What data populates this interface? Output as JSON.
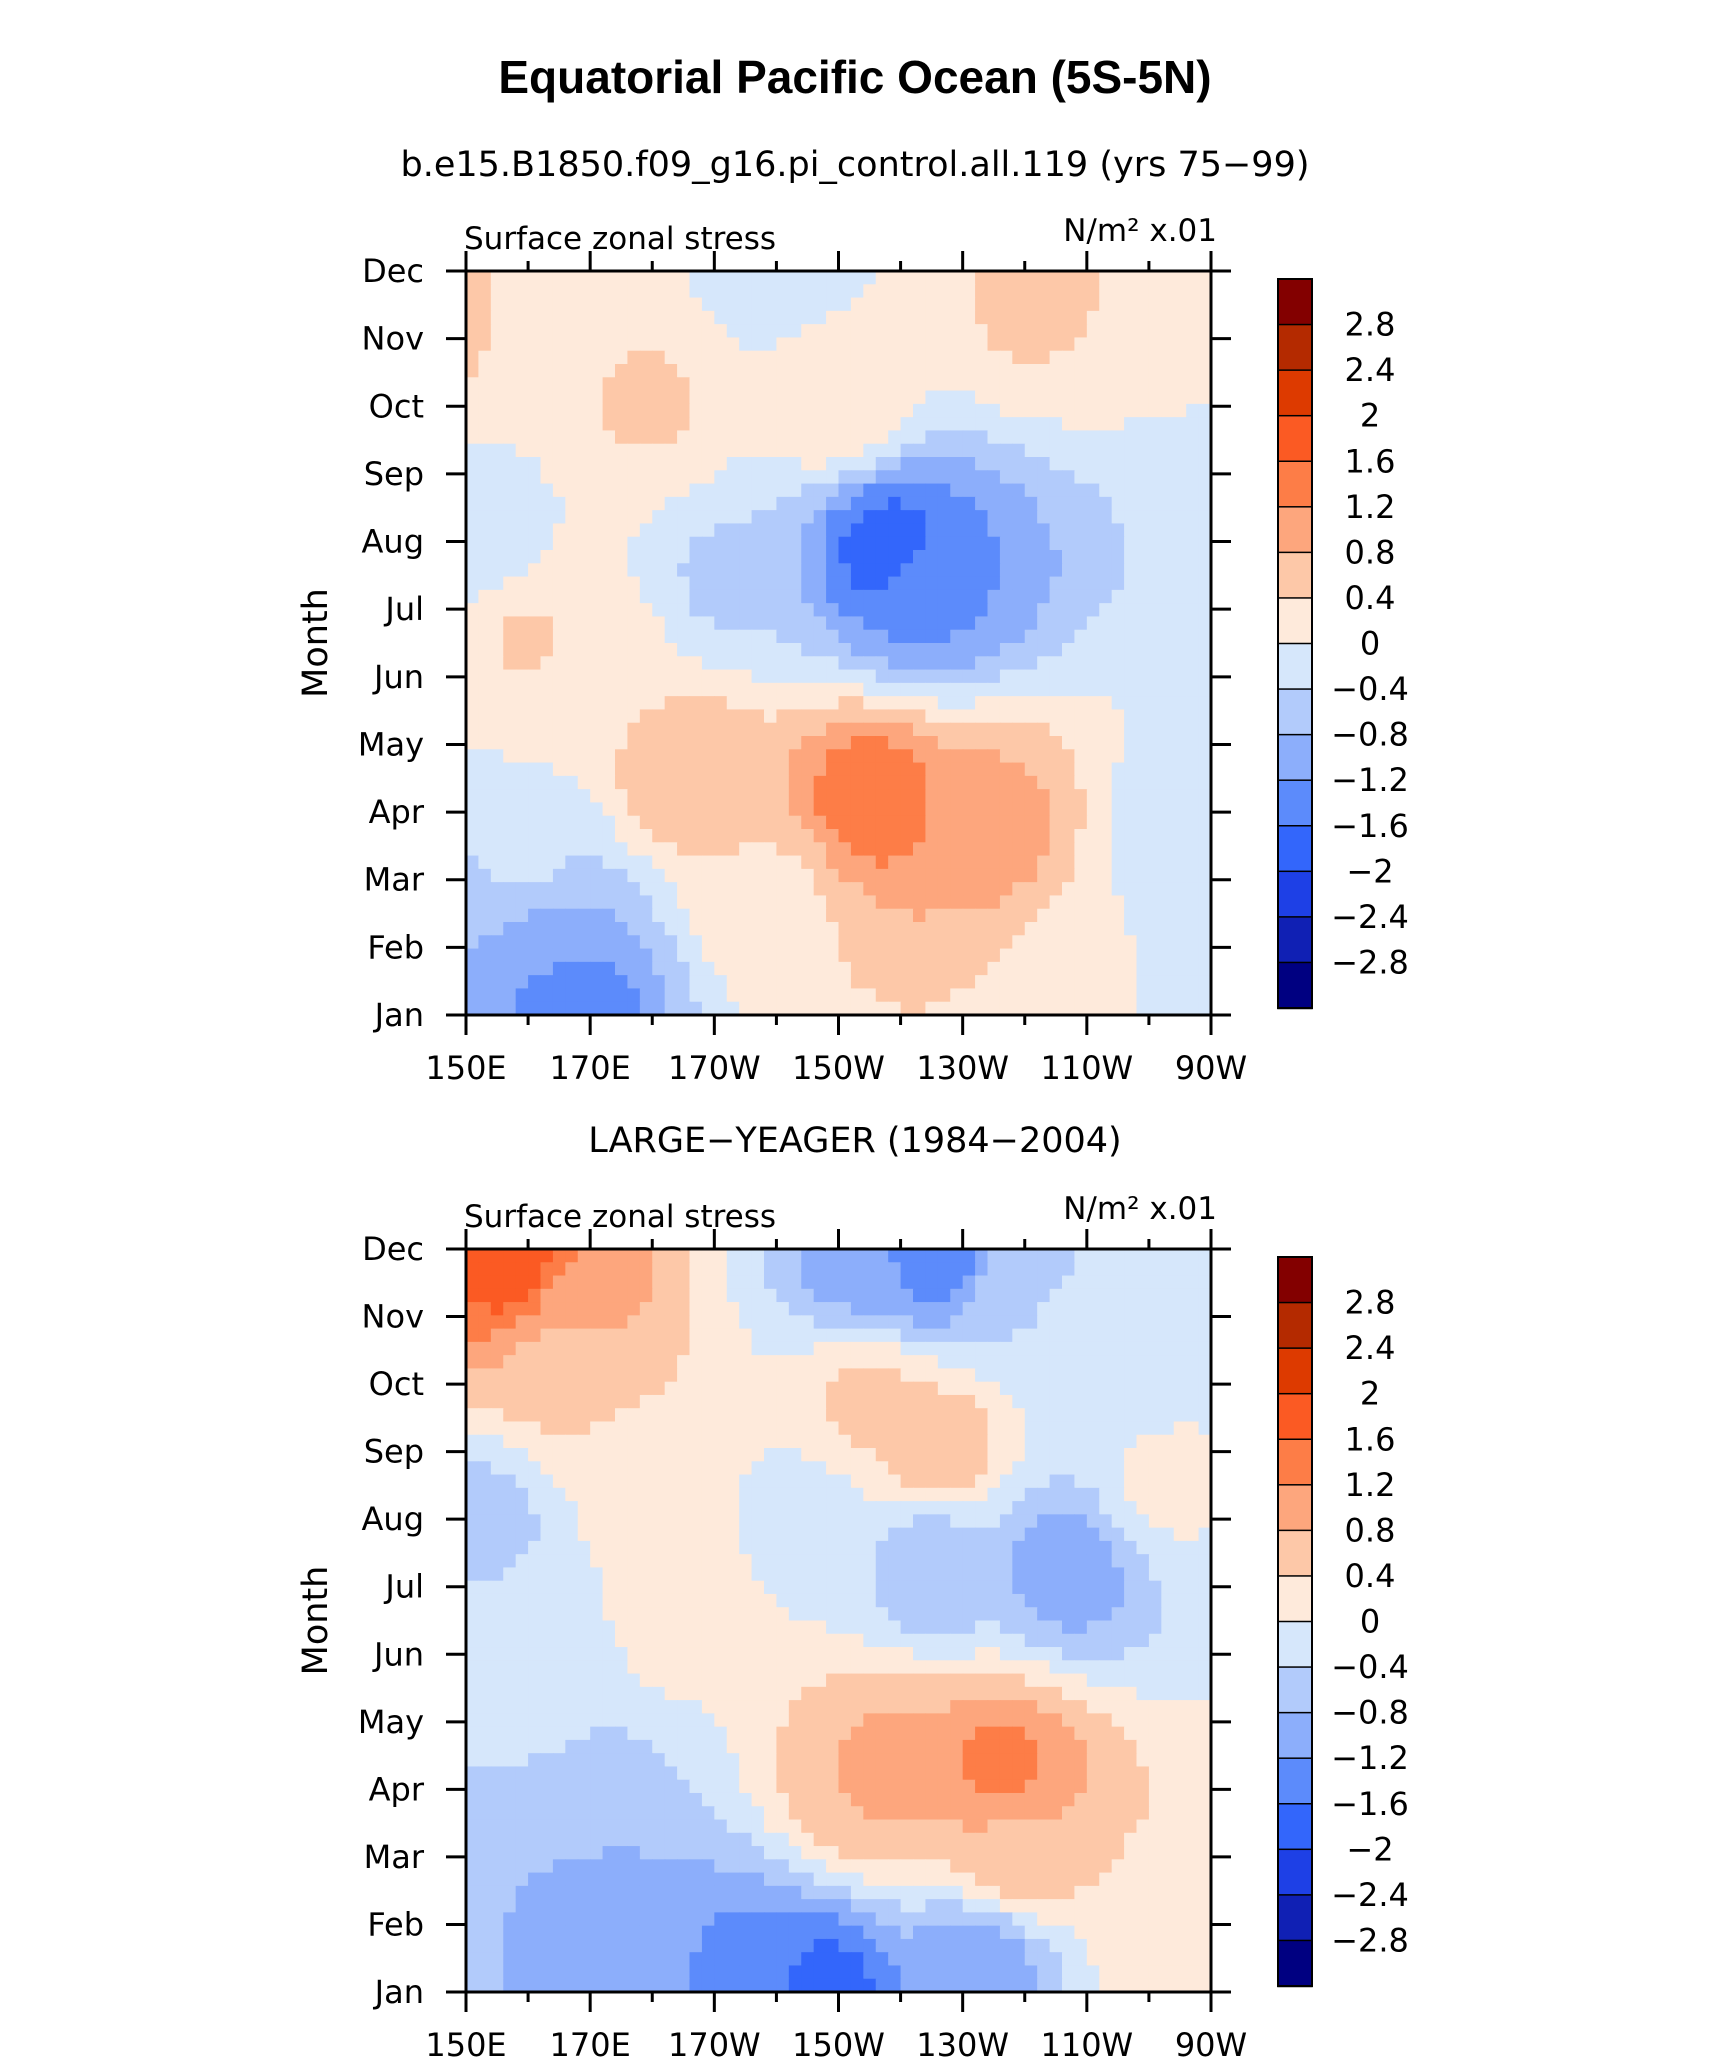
{
  "figure": {
    "title": "Equatorial Pacific Ocean (5S-5N)"
  },
  "chart_data": [
    {
      "type": "heatmap",
      "title": "b.e15.B1850.f09_g16.pi_control.all.119 (yrs 75−99)",
      "left_label": "Surface zonal stress",
      "units_label": "N/m² x.01",
      "xlabel": "",
      "ylabel": "Month",
      "x_ticks": [
        "150E",
        "170E",
        "170W",
        "150W",
        "130W",
        "110W",
        "90W"
      ],
      "y_ticks": [
        "Jan",
        "Feb",
        "Mar",
        "Apr",
        "May",
        "Jun",
        "Jul",
        "Aug",
        "Sep",
        "Oct",
        "Nov",
        "Dec"
      ],
      "xlim": [
        150,
        270
      ],
      "ylim": [
        1,
        12
      ],
      "features": [
        {
          "x": 140,
          "y": 11.0,
          "value": 0.5
        },
        {
          "x": 240,
          "y": 11.5,
          "value": 0.45
        },
        {
          "x": 200,
          "y": 12.0,
          "value": -0.2
        },
        {
          "x": 180,
          "y": 10.0,
          "value": 0.45
        },
        {
          "x": 210,
          "y": 10.0,
          "value": 0.4
        },
        {
          "x": 218,
          "y": 7.9,
          "value": -1.9
        },
        {
          "x": 225,
          "y": 7.3,
          "value": -1.3
        },
        {
          "x": 192,
          "y": 7.4,
          "value": -0.5
        },
        {
          "x": 160,
          "y": 6.6,
          "value": 0.45
        },
        {
          "x": 172,
          "y": 6.0,
          "value": 0.3
        },
        {
          "x": 215,
          "y": 4.2,
          "value": 1.55
        },
        {
          "x": 235,
          "y": 3.8,
          "value": 1.0
        },
        {
          "x": 186,
          "y": 4.6,
          "value": 0.8
        },
        {
          "x": 200,
          "y": 2.7,
          "value": 0.3
        },
        {
          "x": 163,
          "y": 2.2,
          "value": -0.95
        },
        {
          "x": 167,
          "y": 1.3,
          "value": -1.5
        },
        {
          "x": 160,
          "y": 3.2,
          "value": -0.3
        },
        {
          "x": 265,
          "y": 3.8,
          "value": -0.2
        },
        {
          "x": 254,
          "y": 1.5,
          "value": 0.05
        },
        {
          "x": 268,
          "y": 1.5,
          "value": -0.3
        },
        {
          "x": 153,
          "y": 8.0,
          "value": -0.25
        }
      ]
    },
    {
      "type": "heatmap",
      "title": "LARGE−YEAGER (1984−2004)",
      "left_label": "Surface zonal stress",
      "units_label": "N/m² x.01",
      "xlabel": "",
      "ylabel": "Month",
      "x_ticks": [
        "150E",
        "170E",
        "170W",
        "150W",
        "130W",
        "110W",
        "90W"
      ],
      "y_ticks": [
        "Jan",
        "Feb",
        "Mar",
        "Apr",
        "May",
        "Jun",
        "Jul",
        "Aug",
        "Sep",
        "Oct",
        "Nov",
        "Dec"
      ],
      "xlim": [
        150,
        270
      ],
      "ylim": [
        1,
        12
      ],
      "features": [
        {
          "x": 158,
          "y": 11.7,
          "value": 2.0
        },
        {
          "x": 166,
          "y": 11.2,
          "value": 1.0
        },
        {
          "x": 165,
          "y": 10.3,
          "value": 0.5
        },
        {
          "x": 215,
          "y": 11.8,
          "value": -1.1
        },
        {
          "x": 225,
          "y": 11.9,
          "value": -1.6
        },
        {
          "x": 240,
          "y": 11.3,
          "value": -0.4
        },
        {
          "x": 215,
          "y": 9.8,
          "value": 0.55
        },
        {
          "x": 226,
          "y": 9.1,
          "value": 0.75
        },
        {
          "x": 180,
          "y": 8.5,
          "value": 0.25
        },
        {
          "x": 152,
          "y": 7.9,
          "value": -0.7
        },
        {
          "x": 158,
          "y": 6.5,
          "value": -0.2
        },
        {
          "x": 225,
          "y": 7.3,
          "value": -0.8
        },
        {
          "x": 247,
          "y": 7.3,
          "value": -1.1
        },
        {
          "x": 205,
          "y": 8.0,
          "value": -0.2
        },
        {
          "x": 218,
          "y": 4.3,
          "value": 1.0
        },
        {
          "x": 236,
          "y": 4.3,
          "value": 1.4
        },
        {
          "x": 214,
          "y": 4.0,
          "value": 0.8
        },
        {
          "x": 238,
          "y": 3.1,
          "value": 0.7
        },
        {
          "x": 170,
          "y": 3.8,
          "value": -0.7
        },
        {
          "x": 172,
          "y": 2.2,
          "value": -1.0
        },
        {
          "x": 195,
          "y": 1.4,
          "value": -1.3
        },
        {
          "x": 208,
          "y": 1.1,
          "value": -1.8
        },
        {
          "x": 232,
          "y": 1.4,
          "value": -1.2
        },
        {
          "x": 163,
          "y": 5.2,
          "value": -0.3
        },
        {
          "x": 184,
          "y": 6.6,
          "value": 0.25
        },
        {
          "x": 265,
          "y": 1.5,
          "value": 0.2
        },
        {
          "x": 262,
          "y": 8.5,
          "value": 0.1
        },
        {
          "x": 255,
          "y": 10.5,
          "value": -0.2
        }
      ]
    }
  ],
  "colorbar": {
    "labels": [
      "2.8",
      "2.4",
      "2",
      "1.6",
      "1.2",
      "0.8",
      "0.4",
      "0",
      "−0.4",
      "−0.8",
      "−1.2",
      "−1.6",
      "−2",
      "−2.4",
      "−2.8"
    ],
    "colors": [
      "#830000",
      "#b42a00",
      "#dd3a00",
      "#fb5a23",
      "#fd7d47",
      "#fda67d",
      "#fdc8a8",
      "#feeadb",
      "#d6e7fb",
      "#b2cbfb",
      "#8caefb",
      "#5c8bfb",
      "#3366fb",
      "#1e40e6",
      "#1020b4",
      "#000081"
    ]
  }
}
